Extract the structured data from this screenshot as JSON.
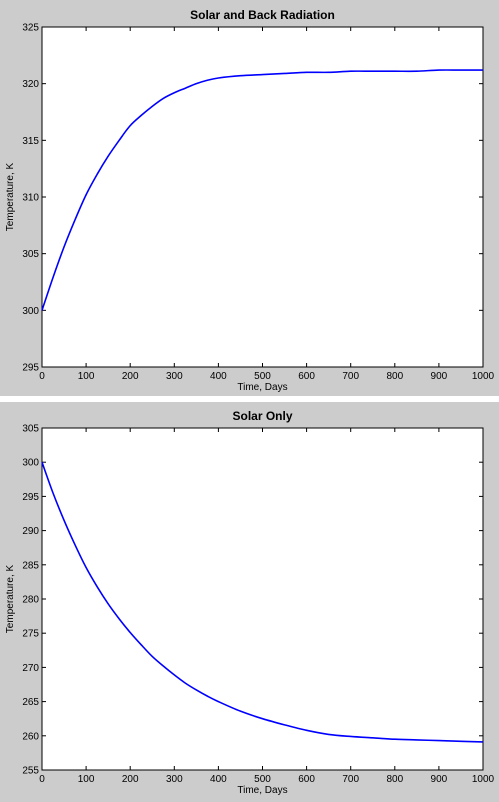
{
  "chart_data": [
    {
      "type": "line",
      "title": "Solar and Back Radiation",
      "xlabel": "Time, Days",
      "ylabel": "Temperature, K",
      "xlim": [
        0,
        1000
      ],
      "ylim": [
        295,
        325
      ],
      "xticks": [
        "0",
        "100",
        "200",
        "300",
        "400",
        "500",
        "600",
        "700",
        "800",
        "900",
        "1000"
      ],
      "yticks": [
        "295",
        "300",
        "305",
        "310",
        "315",
        "320",
        "325"
      ],
      "grid": false,
      "line_color": "#0000ff",
      "x": [
        0,
        25,
        50,
        75,
        100,
        125,
        150,
        175,
        200,
        225,
        250,
        275,
        300,
        325,
        350,
        375,
        400,
        450,
        500,
        550,
        600,
        650,
        700,
        750,
        800,
        850,
        900,
        950,
        1000
      ],
      "series": [
        {
          "values": [
            300.0,
            302.9,
            305.6,
            308.0,
            310.2,
            312.0,
            313.6,
            315.0,
            316.3,
            317.2,
            318.0,
            318.7,
            319.2,
            319.6,
            320.0,
            320.3,
            320.5,
            320.7,
            320.8,
            320.9,
            321.0,
            321.0,
            321.1,
            321.1,
            321.1,
            321.1,
            321.2,
            321.2,
            321.2
          ]
        }
      ]
    },
    {
      "type": "line",
      "title": "Solar Only",
      "xlabel": "Time, Days",
      "ylabel": "Temperature, K",
      "xlim": [
        0,
        1000
      ],
      "ylim": [
        255,
        305
      ],
      "xticks": [
        "0",
        "100",
        "200",
        "300",
        "400",
        "500",
        "600",
        "700",
        "800",
        "900",
        "1000"
      ],
      "yticks": [
        "255",
        "260",
        "265",
        "270",
        "275",
        "280",
        "285",
        "290",
        "295",
        "300",
        "305"
      ],
      "grid": false,
      "line_color": "#0000ff",
      "x": [
        0,
        25,
        50,
        75,
        100,
        125,
        150,
        175,
        200,
        225,
        250,
        275,
        300,
        325,
        350,
        375,
        400,
        450,
        500,
        550,
        600,
        650,
        700,
        750,
        800,
        850,
        900,
        950,
        1000
      ],
      "series": [
        {
          "values": [
            300.0,
            295.5,
            291.5,
            287.9,
            284.6,
            281.8,
            279.3,
            277.1,
            275.1,
            273.3,
            271.6,
            270.2,
            268.9,
            267.7,
            266.7,
            265.8,
            265.0,
            263.6,
            262.5,
            261.6,
            260.8,
            260.2,
            259.9,
            259.7,
            259.5,
            259.4,
            259.3,
            259.2,
            259.1
          ]
        }
      ]
    }
  ]
}
